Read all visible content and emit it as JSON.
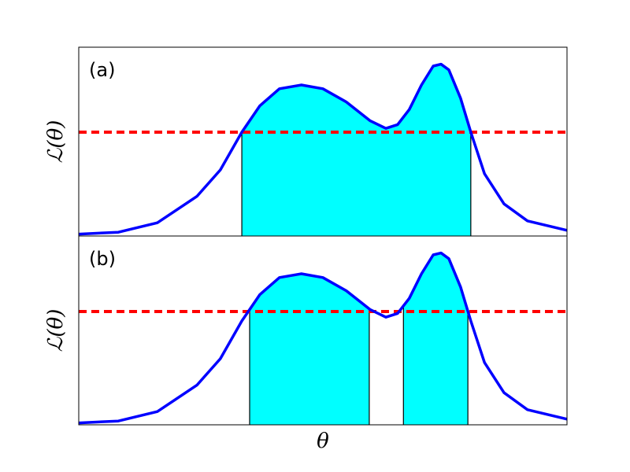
{
  "chart_data": [
    {
      "type": "line",
      "label": "(a)",
      "ylabel": "ℒ(θ)",
      "x": [
        0,
        0.81,
        1.61,
        2.42,
        2.9,
        3.34,
        3.71,
        4.11,
        4.56,
        5.0,
        5.48,
        5.97,
        6.29,
        6.53,
        6.77,
        7.02,
        7.26,
        7.42,
        7.58,
        7.82,
        8.03,
        8.31,
        8.71,
        9.19,
        10
      ],
      "values": [
        0.01,
        0.02,
        0.07,
        0.21,
        0.35,
        0.55,
        0.69,
        0.78,
        0.8,
        0.78,
        0.71,
        0.61,
        0.57,
        0.59,
        0.67,
        0.8,
        0.9,
        0.91,
        0.88,
        0.73,
        0.55,
        0.33,
        0.17,
        0.08,
        0.03
      ],
      "color": "#0000ff",
      "xlim": [
        0,
        10
      ],
      "ylim": [
        0,
        1
      ],
      "hline": {
        "value": 0.55,
        "color": "#ff0000"
      },
      "fill_regions": [
        [
          3.34,
          8.03
        ]
      ],
      "fill_color": "#00ffff"
    },
    {
      "type": "line",
      "label": "(b)",
      "ylabel": "ℒ(θ)",
      "xlabel": "θ",
      "x": [
        0,
        0.81,
        1.61,
        2.42,
        2.9,
        3.34,
        3.71,
        4.11,
        4.56,
        5.0,
        5.48,
        5.97,
        6.29,
        6.53,
        6.77,
        7.02,
        7.26,
        7.42,
        7.58,
        7.82,
        8.03,
        8.31,
        8.71,
        9.19,
        10
      ],
      "values": [
        0.01,
        0.02,
        0.07,
        0.21,
        0.35,
        0.55,
        0.69,
        0.78,
        0.8,
        0.78,
        0.71,
        0.61,
        0.57,
        0.59,
        0.67,
        0.8,
        0.9,
        0.91,
        0.88,
        0.73,
        0.55,
        0.33,
        0.17,
        0.08,
        0.03
      ],
      "color": "#0000ff",
      "xlim": [
        0,
        10
      ],
      "ylim": [
        0,
        1
      ],
      "hline": {
        "value": 0.6,
        "color": "#ff0000"
      },
      "fill_regions": [
        [
          3.5,
          5.95
        ],
        [
          6.65,
          7.97
        ]
      ],
      "fill_color": "#00ffff"
    }
  ]
}
